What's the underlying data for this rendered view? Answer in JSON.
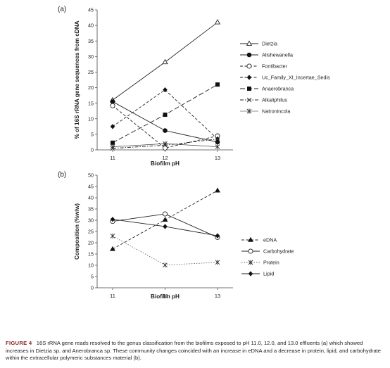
{
  "caption": {
    "label": "FIGURE 4",
    "text": "16S rRNA gene reads resolved to the genus classification from the biofilms exposed to pH 11.0, 12.0, and 13.0 effluents (a) which showed increases in Dietzia sp. and Anerobranca sp. These community changes coincided with an increase in eDNA and a decrease in protein, lipid, and carbohydrate within the extracellular polymeric substances material (b)."
  },
  "chart_data": [
    {
      "panel": "(a)",
      "type": "line",
      "xlabel": "Biofilm pH",
      "ylabel": "% of 16S rRNA gene sequences from cDNA",
      "x": [
        11,
        12,
        13
      ],
      "ylim": [
        0,
        45
      ],
      "yticks": [
        0,
        5,
        10,
        15,
        20,
        25,
        30,
        35,
        40,
        45
      ],
      "legend_position": "right",
      "series": [
        {
          "name": "Dietzia",
          "values": [
            16,
            28.2,
            41
          ],
          "marker": "triangle-open",
          "dash": "solid"
        },
        {
          "name": "Alishewanella",
          "values": [
            15.5,
            6.2,
            2.5
          ],
          "marker": "circle-filled",
          "dash": "solid"
        },
        {
          "name": "Fontibacter",
          "values": [
            14.2,
            0.6,
            4.5
          ],
          "marker": "circle-open",
          "dash": "dashed"
        },
        {
          "name": "Uc_Family_XI_Incertae_Sedis",
          "values": [
            7.5,
            19.3,
            3.5
          ],
          "marker": "diamond-filled",
          "dash": "dashed"
        },
        {
          "name": "Anaerobranca",
          "values": [
            2.3,
            11.3,
            21
          ],
          "marker": "square-filled",
          "dash": "longdash"
        },
        {
          "name": "Alkaliphilus",
          "values": [
            0.5,
            1.5,
            3.5
          ],
          "marker": "x",
          "dash": "dotdash"
        },
        {
          "name": "Natronincola",
          "values": [
            1,
            2,
            1
          ],
          "marker": "asterisk",
          "dash": "solid-thin"
        }
      ]
    },
    {
      "panel": "(b)",
      "type": "line",
      "xlabel": "Biofilm pH",
      "ylabel": "Composition (%w/w)",
      "x": [
        11,
        12,
        13
      ],
      "ylim": [
        0,
        50
      ],
      "yticks": [
        0,
        5,
        10,
        15,
        20,
        25,
        30,
        35,
        40,
        45,
        50
      ],
      "legend_position": "right",
      "series": [
        {
          "name": "eDNA",
          "values": [
            17.2,
            30.2,
            43.2
          ],
          "marker": "triangle-filled",
          "dash": "dashed"
        },
        {
          "name": "Carbohydrate",
          "values": [
            29.5,
            32.8,
            22.4
          ],
          "marker": "circle-open",
          "dash": "solid"
        },
        {
          "name": "Protein",
          "values": [
            23,
            10.1,
            11.3
          ],
          "marker": "asterisk",
          "dash": "dotted"
        },
        {
          "name": "Lipid",
          "values": [
            30.4,
            27.2,
            23.1
          ],
          "marker": "diamond-filled",
          "dash": "solid"
        }
      ]
    }
  ]
}
